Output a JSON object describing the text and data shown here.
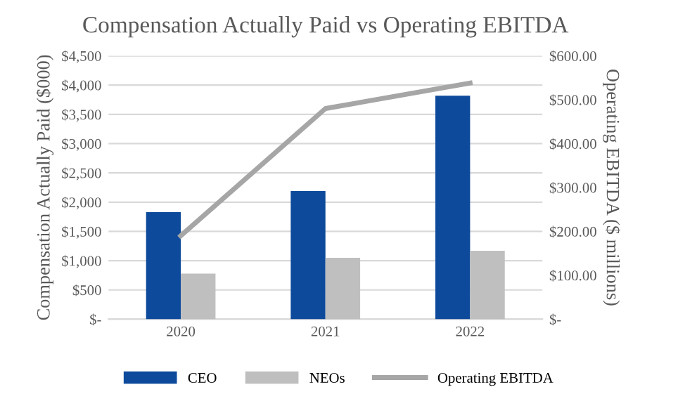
{
  "chart_data": {
    "type": "bar",
    "title": "Compensation Actually Paid vs Operating EBITDA",
    "ylabel": "Compensation Actually Paid ($000)",
    "y2label": "Operating EBITDA ($ millions)",
    "categories": [
      "2020",
      "2021",
      "2022"
    ],
    "series": [
      {
        "name": "CEO",
        "color": "#0d4a9b",
        "values": [
          1830,
          2190,
          3820
        ]
      },
      {
        "name": "NEOs",
        "color": "#bfbfbf",
        "values": [
          780,
          1050,
          1170
        ]
      },
      {
        "name": "Operating EBITDA",
        "type": "line",
        "axis": "y2",
        "color": "#a6a6a6",
        "values": [
          190,
          480,
          538
        ]
      }
    ],
    "ylim": [
      0,
      4500
    ],
    "yticks": [
      {
        "value": 0,
        "label": "$-"
      },
      {
        "value": 500,
        "label": "$500"
      },
      {
        "value": 1000,
        "label": "$1,000"
      },
      {
        "value": 1500,
        "label": "$1,500"
      },
      {
        "value": 2000,
        "label": "$2,000"
      },
      {
        "value": 2500,
        "label": "$2,500"
      },
      {
        "value": 3000,
        "label": "$3,000"
      },
      {
        "value": 3500,
        "label": "$3,500"
      },
      {
        "value": 4000,
        "label": "$4,000"
      },
      {
        "value": 4500,
        "label": "$4,500"
      }
    ],
    "y2lim": [
      0,
      600
    ],
    "y2ticks": [
      {
        "value": 0,
        "label": "$-"
      },
      {
        "value": 100,
        "label": "$100.00"
      },
      {
        "value": 200,
        "label": "$200.00"
      },
      {
        "value": 300,
        "label": "$300.00"
      },
      {
        "value": 400,
        "label": "$400.00"
      },
      {
        "value": 500,
        "label": "$500.00"
      },
      {
        "value": 600,
        "label": "$600.00"
      }
    ],
    "grid": "y",
    "legend": "bottom"
  }
}
